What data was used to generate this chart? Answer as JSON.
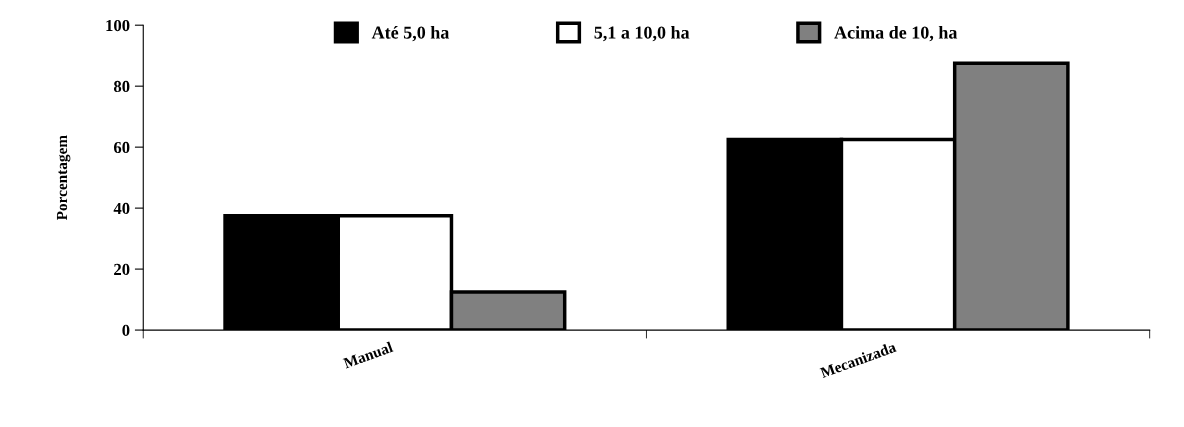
{
  "chart_data": {
    "type": "bar",
    "ylabel": "Porcentagem",
    "categories": [
      "Manual",
      "Mecanizada"
    ],
    "series": [
      {
        "name": "Até 5,0 ha",
        "color": "#000000",
        "values": [
          37.5,
          62.5
        ]
      },
      {
        "name": "5,1 a 10,0 ha",
        "color": "#ffffff",
        "values": [
          37.5,
          62.5
        ]
      },
      {
        "name": "Acima de 10, ha",
        "color": "#808080",
        "values": [
          12.5,
          87.5
        ]
      }
    ],
    "ylim": [
      0,
      100
    ],
    "yticks": [
      0,
      20,
      40,
      60,
      80,
      100
    ],
    "legend": "top",
    "grid": false
  }
}
